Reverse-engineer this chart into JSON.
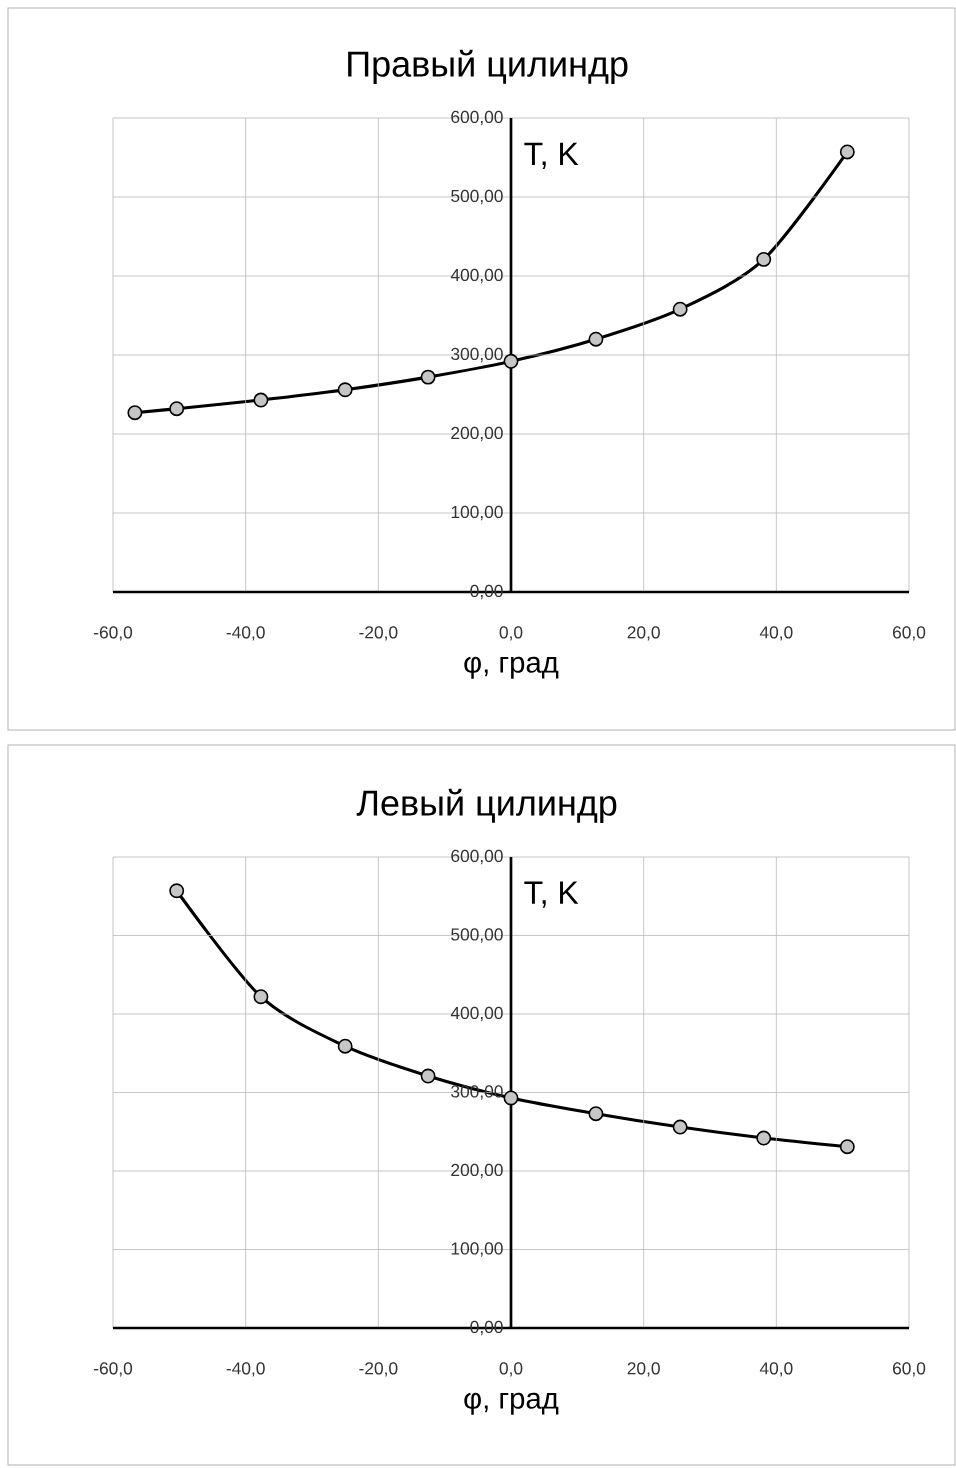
{
  "chart_data": [
    {
      "type": "line",
      "title": "Правый цилиндр",
      "xlabel": "φ, град",
      "ylabel": "T, K",
      "x": [
        -56.7,
        -50.4,
        -37.7,
        -25.0,
        -12.5,
        0,
        12.8,
        25.5,
        38.1,
        50.7
      ],
      "series": [
        {
          "color": "#000000",
          "values": [
            227,
            232,
            243,
            256,
            272,
            292,
            320,
            358,
            421,
            557
          ]
        }
      ],
      "xlim": [
        -60,
        60
      ],
      "ylim": [
        0,
        600
      ],
      "xticks": [
        {
          "value": -60,
          "label": "-60,0"
        },
        {
          "value": -40,
          "label": "-40,0"
        },
        {
          "value": -20,
          "label": "-20,0"
        },
        {
          "value": 0,
          "label": "0,0"
        },
        {
          "value": 20,
          "label": "20,0"
        },
        {
          "value": 40,
          "label": "40,0"
        },
        {
          "value": 60,
          "label": "60,0"
        }
      ],
      "yticks": [
        {
          "value": 0,
          "label": "0,00"
        },
        {
          "value": 100,
          "label": "100,00"
        },
        {
          "value": 200,
          "label": "200,00"
        },
        {
          "value": 300,
          "label": "300,00"
        },
        {
          "value": 400,
          "label": "400,00"
        },
        {
          "value": 500,
          "label": "500,00"
        },
        {
          "value": 600,
          "label": "600,00"
        }
      ],
      "grid": true,
      "marker": "circle",
      "line_style": "solid"
    },
    {
      "type": "line",
      "title": "Левый цилиндр",
      "xlabel": "φ, град",
      "ylabel": "T, K",
      "x": [
        -50.4,
        -37.7,
        -25.0,
        -12.5,
        0,
        12.8,
        25.5,
        38.1,
        50.7
      ],
      "series": [
        {
          "color": "#000000",
          "values": [
            557,
            422,
            359,
            321,
            293,
            273,
            256,
            242,
            231
          ]
        }
      ],
      "xlim": [
        -60,
        60
      ],
      "ylim": [
        0,
        600
      ],
      "xticks": [
        {
          "value": -60,
          "label": "-60,0"
        },
        {
          "value": -40,
          "label": "-40,0"
        },
        {
          "value": -20,
          "label": "-20,0"
        },
        {
          "value": 0,
          "label": "0,0"
        },
        {
          "value": 20,
          "label": "20,0"
        },
        {
          "value": 40,
          "label": "40,0"
        },
        {
          "value": 60,
          "label": "60,0"
        }
      ],
      "yticks": [
        {
          "value": 0,
          "label": "0,00"
        },
        {
          "value": 100,
          "label": "100,00"
        },
        {
          "value": 200,
          "label": "200,00"
        },
        {
          "value": 300,
          "label": "300,00"
        },
        {
          "value": 400,
          "label": "400,00"
        },
        {
          "value": 500,
          "label": "500,00"
        },
        {
          "value": 600,
          "label": "600,00"
        }
      ],
      "grid": true,
      "marker": "circle",
      "line_style": "solid"
    }
  ]
}
